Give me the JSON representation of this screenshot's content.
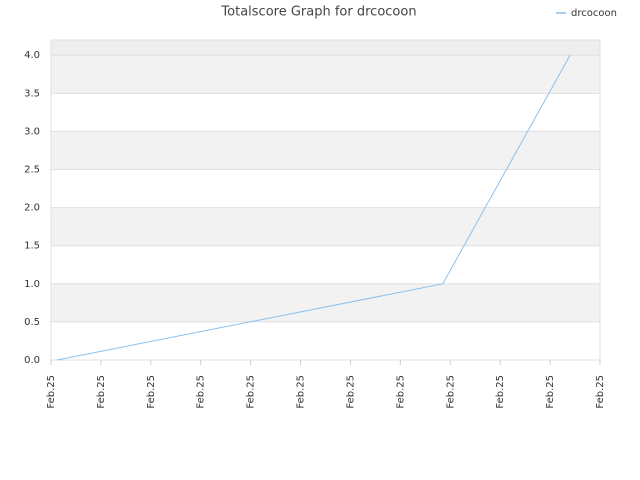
{
  "chart_data": {
    "type": "line",
    "title": "Totalscore Graph for drcocoon",
    "x": [
      0.12,
      7.85,
      10.4
    ],
    "series": [
      {
        "name": "drcocoon",
        "color": "#8cc0ee",
        "values": [
          0,
          1.0,
          4.0
        ]
      }
    ],
    "xlim": [
      0,
      11
    ],
    "xticks": [
      {
        "value": 0,
        "label": "Feb.25"
      },
      {
        "value": 1,
        "label": "Feb.25"
      },
      {
        "value": 2,
        "label": "Feb.25"
      },
      {
        "value": 3,
        "label": "Feb.25"
      },
      {
        "value": 4,
        "label": "Feb.25"
      },
      {
        "value": 5,
        "label": "Feb.25"
      },
      {
        "value": 6,
        "label": "Feb.25"
      },
      {
        "value": 7,
        "label": "Feb.25"
      },
      {
        "value": 8,
        "label": "Feb.25"
      },
      {
        "value": 9,
        "label": "Feb.25"
      },
      {
        "value": 10,
        "label": "Feb.25"
      },
      {
        "value": 11,
        "label": "Feb.25"
      }
    ],
    "ylim": [
      0,
      4.2
    ],
    "yticks": [
      {
        "value": 0,
        "label": "0.0"
      },
      0.5,
      {
        "value": 1,
        "label": "1.0"
      },
      1.5,
      {
        "value": 2,
        "label": "2.0"
      },
      2.5,
      {
        "value": 3,
        "label": "3.0"
      },
      3.5,
      {
        "value": 4,
        "label": "4.0"
      }
    ],
    "grid": true,
    "legend": "top-right"
  }
}
